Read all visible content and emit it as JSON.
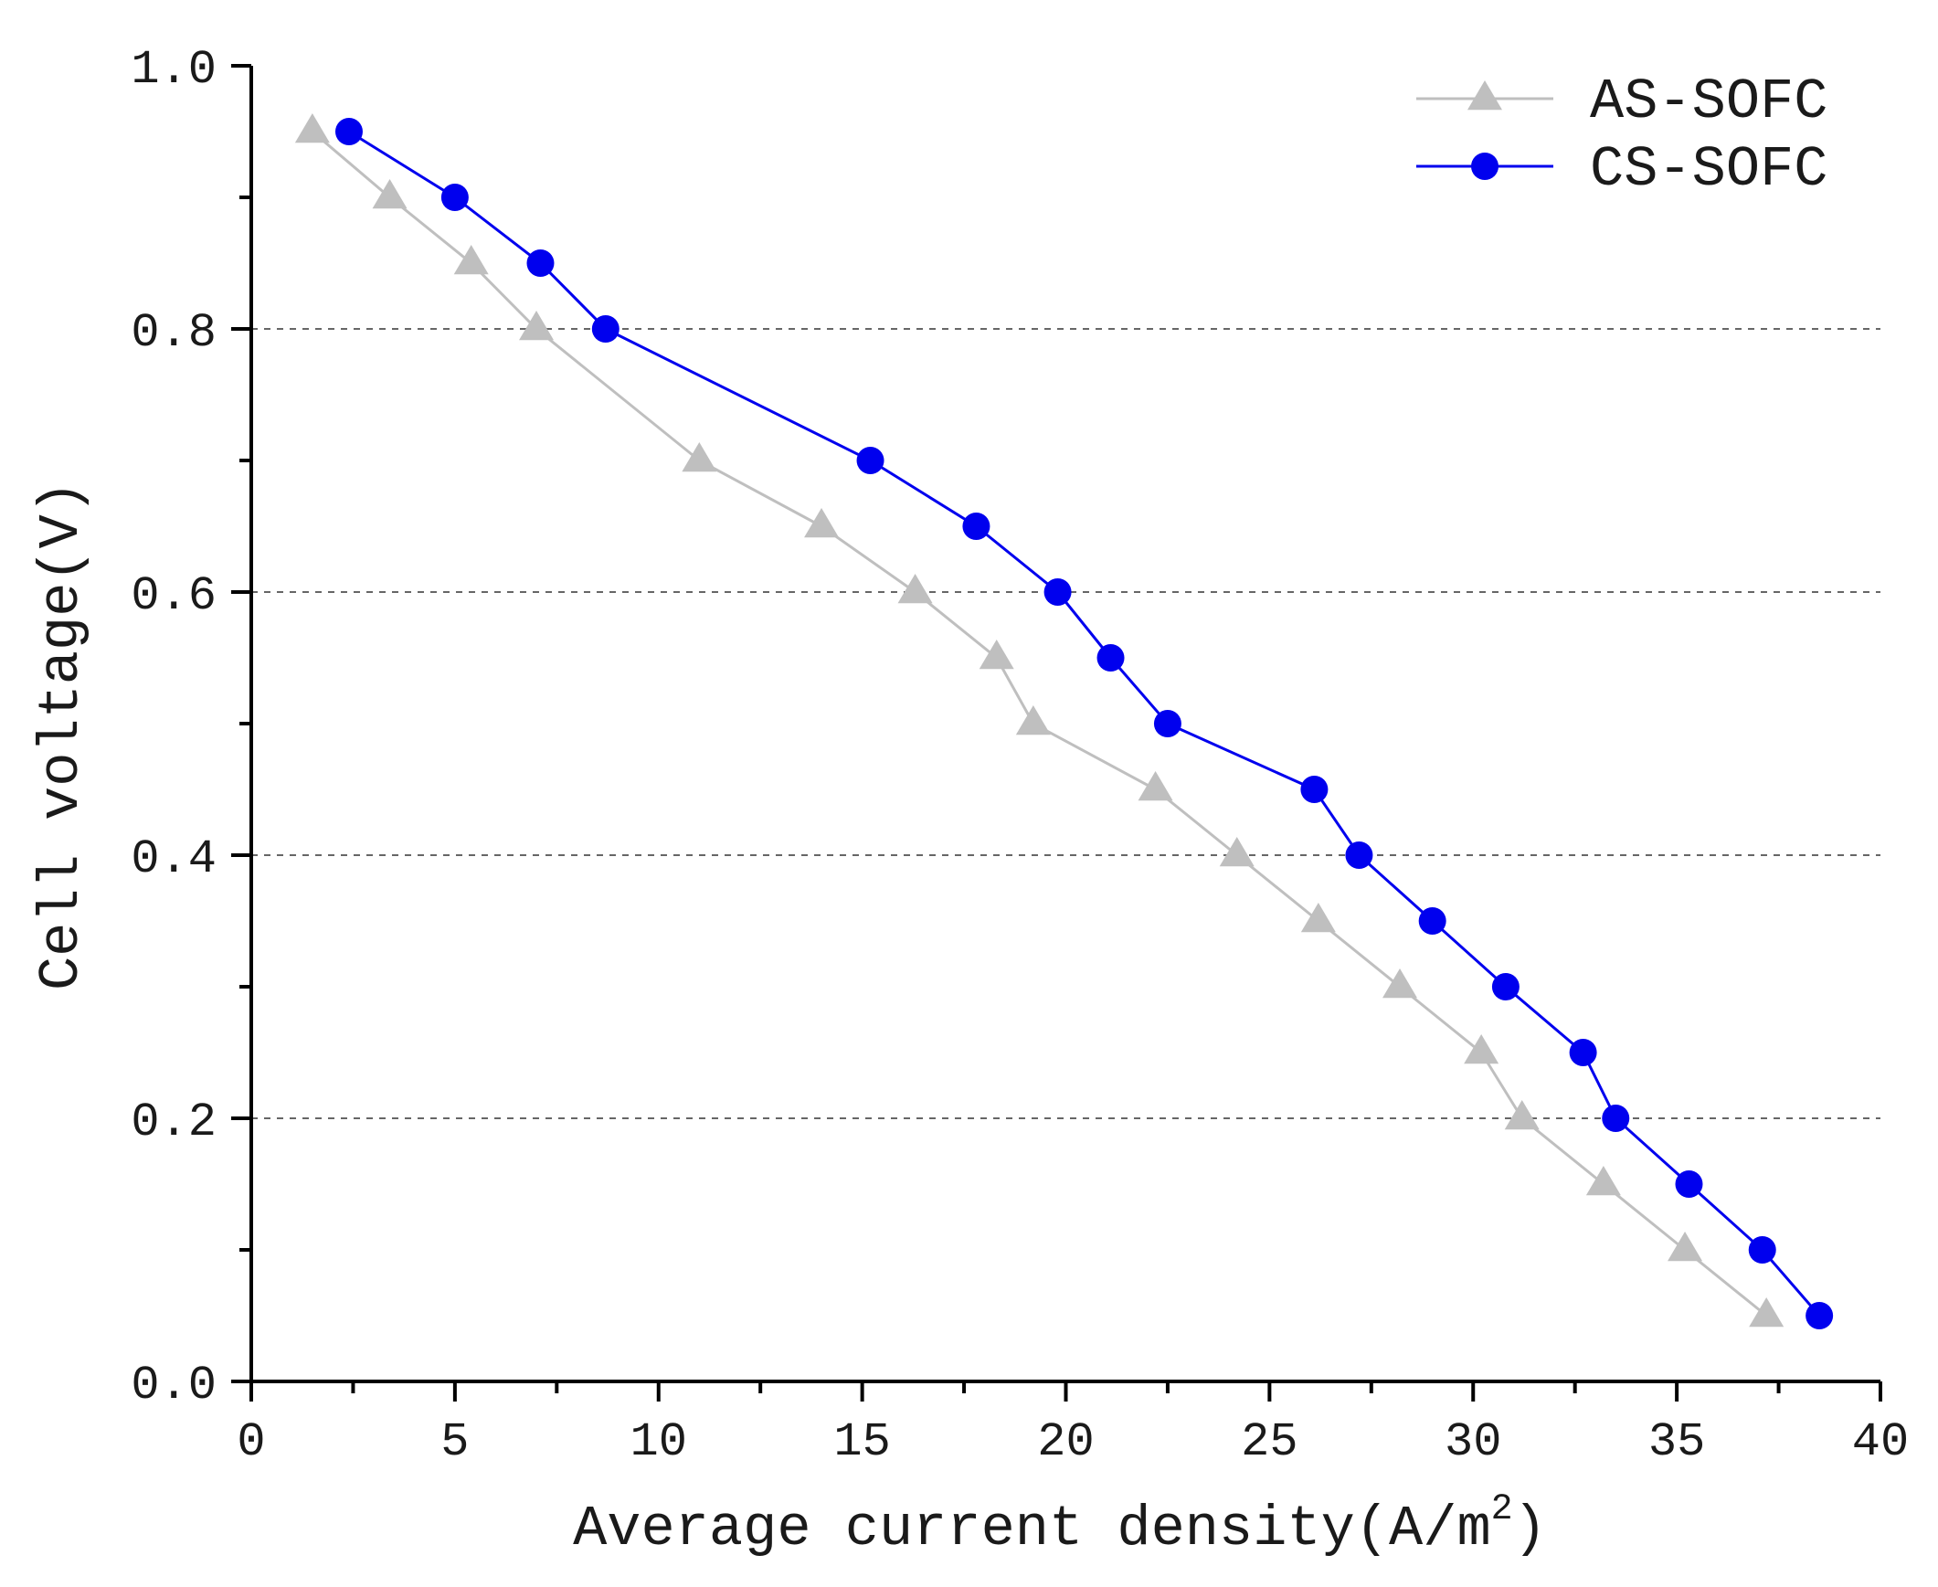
{
  "chart_data": {
    "type": "line",
    "title": "",
    "xlabel": "Average current density(A/m",
    "xlabel_superscript": "2",
    "xlabel_suffix": ")",
    "ylabel": "Cell voltage(V)",
    "xlim": [
      0,
      40
    ],
    "ylim": [
      0.0,
      1.0
    ],
    "x_ticks": [
      0,
      5,
      10,
      15,
      20,
      25,
      30,
      35,
      40
    ],
    "x_tick_labels": [
      "0",
      "5",
      "10",
      "15",
      "20",
      "25",
      "30",
      "35",
      "40"
    ],
    "y_ticks": [
      0.0,
      0.2,
      0.4,
      0.6,
      0.8,
      1.0
    ],
    "y_tick_labels": [
      "0.0",
      "0.2",
      "0.4",
      "0.6",
      "0.8",
      "1.0"
    ],
    "y_minor_ticks": [
      0.1,
      0.3,
      0.5,
      0.7,
      0.9
    ],
    "grid_y": [
      0.2,
      0.4,
      0.6,
      0.8
    ],
    "legend_position": "top-right",
    "series": [
      {
        "name": "AS-SOFC",
        "marker": "triangle",
        "color": "#bfbfbf",
        "x": [
          1.5,
          3.4,
          5.4,
          7.0,
          11.0,
          14.0,
          16.3,
          18.3,
          19.2,
          22.2,
          24.2,
          26.2,
          28.2,
          30.2,
          31.2,
          33.2,
          35.2,
          37.2
        ],
        "y": [
          0.95,
          0.9,
          0.85,
          0.8,
          0.7,
          0.65,
          0.6,
          0.55,
          0.5,
          0.45,
          0.4,
          0.35,
          0.3,
          0.25,
          0.2,
          0.15,
          0.1,
          0.05
        ]
      },
      {
        "name": "CS-SOFC",
        "marker": "circle",
        "color": "#0000ee",
        "x": [
          2.4,
          5.0,
          7.1,
          8.7,
          15.2,
          17.8,
          19.8,
          21.1,
          22.5,
          26.1,
          27.2,
          29.0,
          30.8,
          32.7,
          33.5,
          35.3,
          37.1,
          38.5
        ],
        "y": [
          0.95,
          0.9,
          0.85,
          0.8,
          0.7,
          0.65,
          0.6,
          0.55,
          0.5,
          0.45,
          0.4,
          0.35,
          0.3,
          0.25,
          0.2,
          0.15,
          0.1,
          0.05
        ]
      }
    ]
  }
}
